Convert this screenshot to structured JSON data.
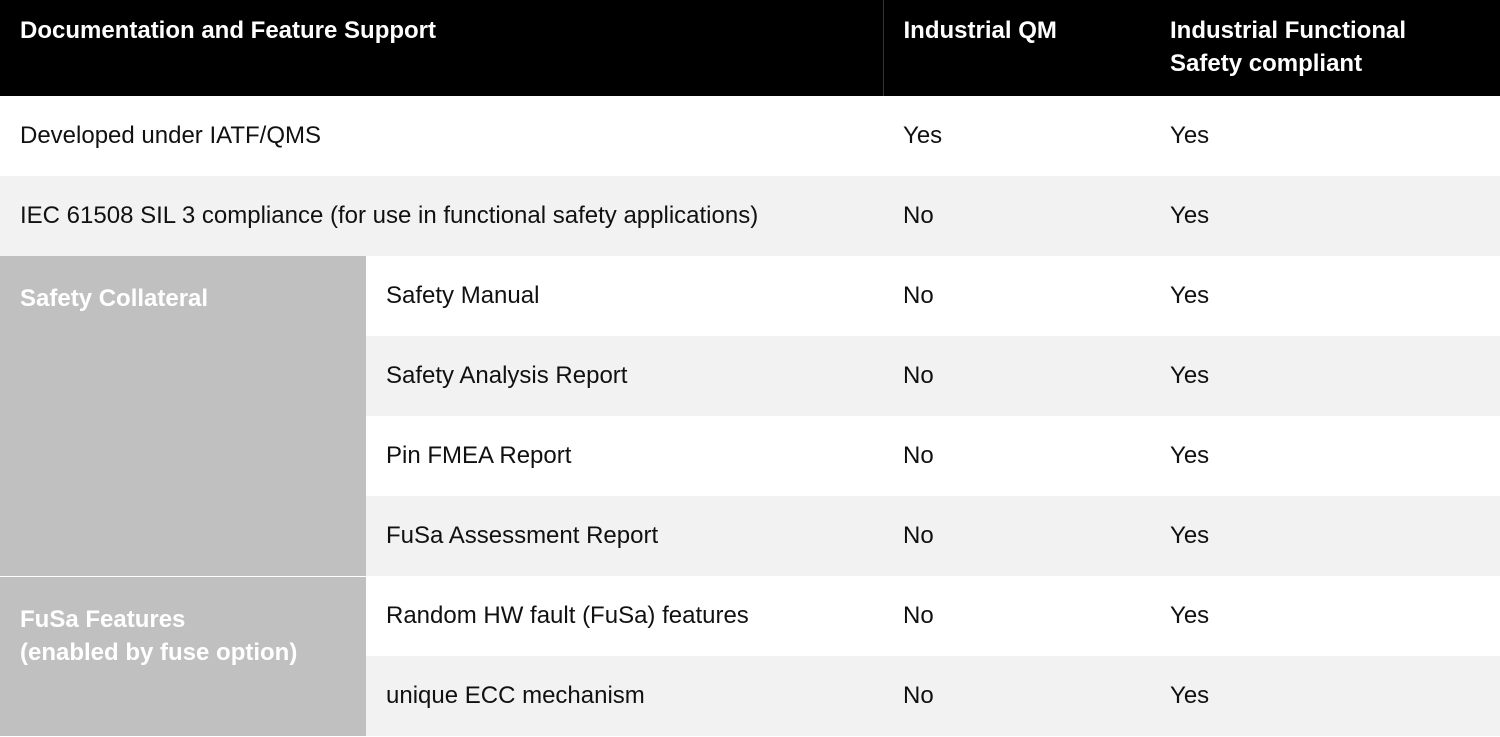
{
  "table": {
    "header": [
      "Documentation and Feature Support",
      "Industrial QM",
      "Industrial Functional Safety compliant"
    ],
    "rows": [
      {
        "label": "Developed under IATF/QMS",
        "qm": "Yes",
        "fs": "Yes"
      },
      {
        "label": "IEC 61508 SIL 3 compliance (for use in functional safety applications)",
        "qm": "No",
        "fs": "Yes"
      }
    ],
    "groups": [
      {
        "label": [
          "Safety Collateral"
        ],
        "rows": [
          {
            "label": "Safety Manual",
            "qm": "No",
            "fs": "Yes"
          },
          {
            "label": "Safety Analysis Report",
            "qm": "No",
            "fs": "Yes"
          },
          {
            "label": "Pin FMEA Report",
            "qm": "No",
            "fs": "Yes"
          },
          {
            "label": "FuSa Assessment Report",
            "qm": "No",
            "fs": "Yes"
          }
        ]
      },
      {
        "label": [
          "FuSa Features",
          "(enabled by fuse option)"
        ],
        "rows": [
          {
            "label": "Random HW fault (FuSa) features",
            "qm": "No",
            "fs": "Yes"
          },
          {
            "label": "unique ECC mechanism",
            "qm": "No",
            "fs": "Yes"
          }
        ]
      }
    ]
  }
}
